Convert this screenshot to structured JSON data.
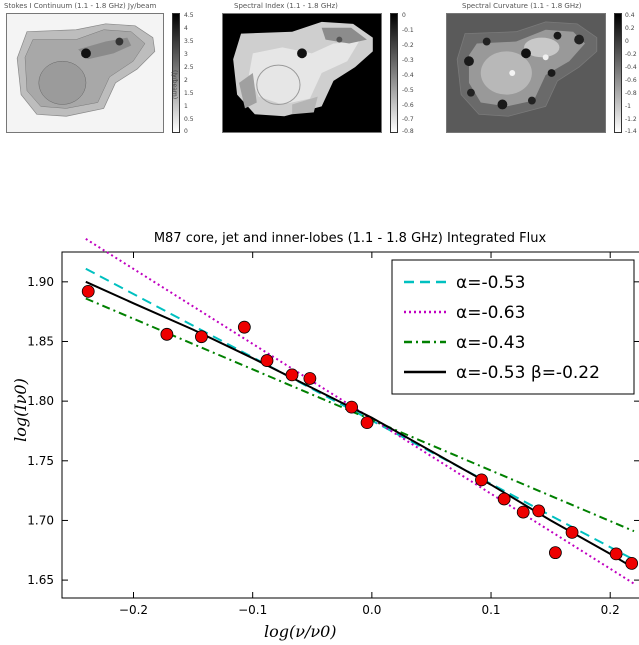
{
  "panels": [
    {
      "title": "Stokes I Continuum (1.1 - 1.8 GHz) Jy/beam",
      "colorbar_label": "(Jy/beam)",
      "colorbar_ticks": [
        "4.5",
        "4",
        "3.5",
        "3",
        "2.5",
        "2",
        "1.5",
        "1",
        "0.5",
        "0"
      ],
      "colorbar_gradient": [
        "#000000",
        "#ffffff"
      ]
    },
    {
      "title": "Spectral Index (1.1 - 1.8 GHz)",
      "colorbar_ticks": [
        "0",
        "-0.1",
        "-0.2",
        "-0.3",
        "-0.4",
        "-0.5",
        "-0.6",
        "-0.7",
        "-0.8"
      ],
      "colorbar_gradient": [
        "#000000",
        "#ffffff"
      ]
    },
    {
      "title": "Spectral Curvature (1.1 - 1.8 GHz)",
      "colorbar_ticks": [
        "0.4",
        "0.2",
        "0",
        "-0.2",
        "-0.4",
        "-0.6",
        "-0.8",
        "-1",
        "-1.2",
        "-1.4"
      ],
      "colorbar_gradient": [
        "#000000",
        "#ffffff"
      ]
    }
  ],
  "chart_data": {
    "type": "scatter",
    "title": "M87 core, jet and inner-lobes (1.1 - 1.8 GHz) Integrated Flux",
    "xlabel": "log(ν/ν0)",
    "ylabel": "log(Iν0)",
    "xlim": [
      -0.26,
      0.225
    ],
    "ylim": [
      1.635,
      1.925
    ],
    "xticks": [
      -0.2,
      -0.1,
      0.0,
      0.1,
      0.2
    ],
    "yticks": [
      1.65,
      1.7,
      1.75,
      1.8,
      1.85,
      1.9
    ],
    "xtick_labels": [
      "−0.2",
      "−0.1",
      "0.0",
      "0.1",
      "0.2"
    ],
    "ytick_labels": [
      "1.65",
      "1.70",
      "1.75",
      "1.80",
      "1.85",
      "1.90"
    ],
    "grid": false,
    "legend_position": "top-right",
    "points": {
      "color": "#ee0000",
      "x": [
        -0.238,
        -0.172,
        -0.143,
        -0.107,
        -0.088,
        -0.067,
        -0.052,
        -0.017,
        -0.004,
        0.092,
        0.111,
        0.127,
        0.14,
        0.154,
        0.168,
        0.205,
        0.218
      ],
      "y": [
        1.892,
        1.856,
        1.854,
        1.862,
        1.834,
        1.822,
        1.819,
        1.795,
        1.782,
        1.734,
        1.718,
        1.707,
        1.708,
        1.673,
        1.69,
        1.672,
        1.664
      ]
    },
    "series": [
      {
        "name": "α=-0.53",
        "legend_label": "α=-0.53",
        "style": "dashed",
        "color": "#00c0c0",
        "x": [
          -0.24,
          0.22
        ],
        "y": [
          1.911,
          1.667
        ]
      },
      {
        "name": "α=-0.63",
        "legend_label": "α=-0.63",
        "style": "dotted",
        "color": "#c000c0",
        "x": [
          -0.24,
          0.22
        ],
        "y": [
          1.936,
          1.647
        ]
      },
      {
        "name": "α=-0.43",
        "legend_label": "α=-0.43",
        "style": "dashdot",
        "color": "#008000",
        "x": [
          -0.24,
          0.22
        ],
        "y": [
          1.886,
          1.691
        ]
      },
      {
        "name": "α=-0.53 β=-0.22",
        "legend_label": "α=-0.53 β=-0.22",
        "style": "solid",
        "color": "#000000",
        "x": [
          -0.24,
          -0.2,
          -0.15,
          -0.1,
          -0.05,
          0.0,
          0.05,
          0.1,
          0.15,
          0.2,
          0.22
        ],
        "y": [
          1.9,
          1.882,
          1.86,
          1.836,
          1.811,
          1.786,
          1.758,
          1.73,
          1.7,
          1.672,
          1.66
        ]
      }
    ]
  }
}
